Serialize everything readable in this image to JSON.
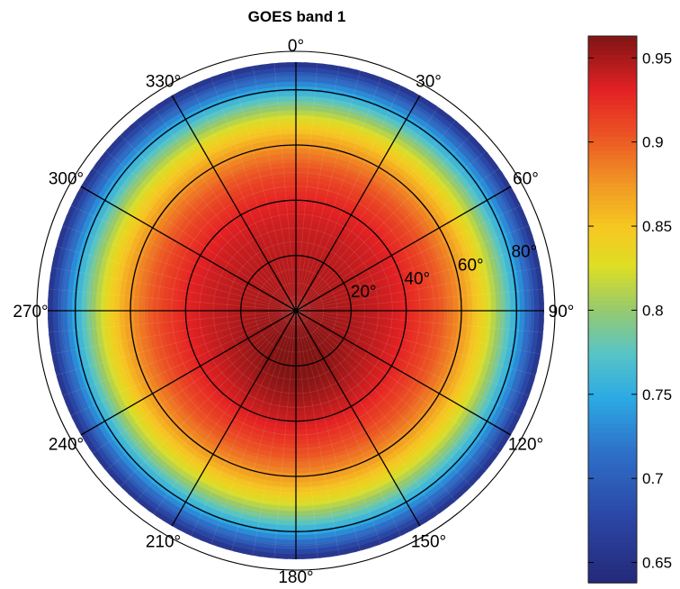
{
  "chart_data": {
    "type": "heatmap",
    "projection": "polar",
    "title": "GOES band 1",
    "angular_ticks": [
      "0°",
      "30°",
      "60°",
      "90°",
      "120°",
      "150°",
      "180°",
      "210°",
      "240°",
      "270°",
      "300°",
      "330°"
    ],
    "radial_ticks": [
      "20°",
      "40°",
      "60°",
      "80°"
    ],
    "radial_values": [
      20,
      40,
      60,
      80
    ],
    "rmax": 90,
    "zero_direction": "top",
    "rotation": "clockwise",
    "colormap": "parula-jet",
    "colorbar": {
      "ticks": [
        "0.65",
        "0.7",
        "0.75",
        "0.8",
        "0.85",
        "0.9",
        "0.95"
      ],
      "tick_values": [
        0.65,
        0.7,
        0.75,
        0.8,
        0.85,
        0.9,
        0.95
      ],
      "range": [
        0.638,
        0.963
      ]
    },
    "field": {
      "value_at_center": 0.945,
      "value_at_rim": 0.65,
      "max_value": 0.962,
      "max_location": {
        "zenith": 20,
        "azimuth": 180
      }
    },
    "grid": true,
    "legend": "colorbar-right"
  }
}
